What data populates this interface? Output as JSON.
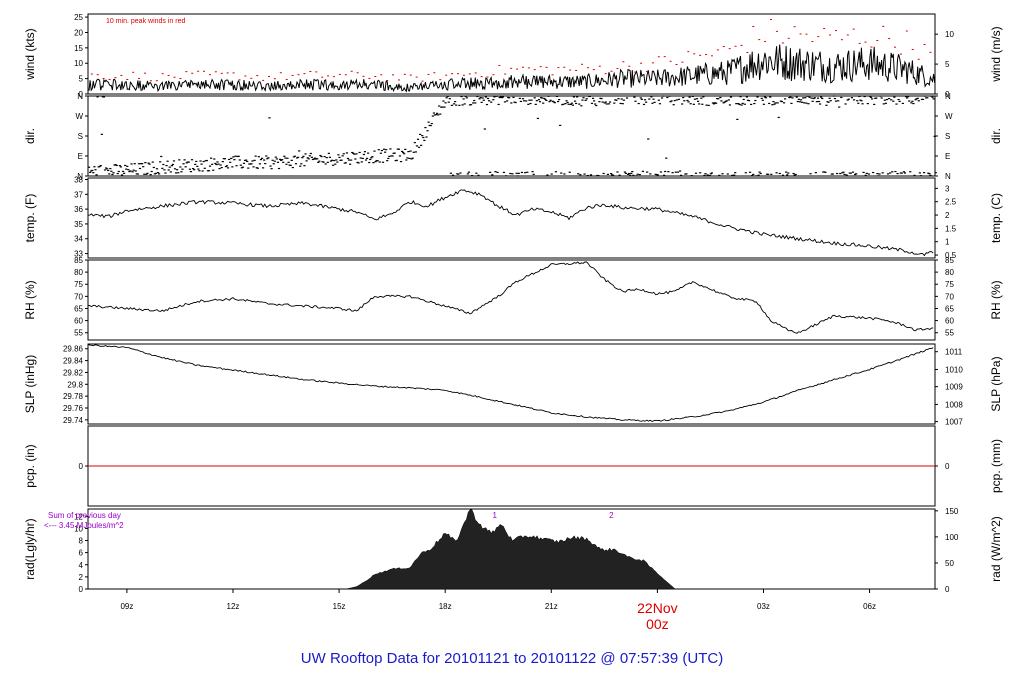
{
  "footer": {
    "title": "UW Rooftop Data for 20101121  to  20101122 @ 07:57:39  (UTC)"
  },
  "colors": {
    "peak_winds": "#dd0000",
    "annotation": "#9900cc",
    "footer": "#1a1acc",
    "trace": "#000000",
    "zero_line": "#dd0000",
    "date_label": "#dd0000"
  },
  "chart_data": {
    "type": "line",
    "x_axis": {
      "unit": "UTC hours since 20101121 00z",
      "range": [
        7.9,
        31.85
      ],
      "ticks": [
        {
          "value": 9,
          "label": "09z"
        },
        {
          "value": 12,
          "label": "12z"
        },
        {
          "value": 15,
          "label": "15z"
        },
        {
          "value": 18,
          "label": "18z"
        },
        {
          "value": 21,
          "label": "21z"
        },
        {
          "value": 24,
          "label": "22Nov\n00z"
        },
        {
          "value": 27,
          "label": "03z"
        },
        {
          "value": 30,
          "label": "06z"
        }
      ]
    },
    "panels": [
      {
        "id": "wind",
        "ylabel": "wind (kts)",
        "ylabel_right": "wind (m/s)",
        "ylim": [
          0,
          26
        ],
        "yticks": [
          0,
          5,
          10,
          15,
          20,
          25
        ],
        "yticks_right": [
          {
            "value": 0,
            "label": "0"
          },
          {
            "value": 9.72,
            "label": "5"
          },
          {
            "value": 19.44,
            "label": "10"
          }
        ],
        "annotation": "10 min. peak winds in red",
        "series": [
          {
            "name": "wind",
            "x": [
              8,
              9,
              10,
              11,
              12,
              13,
              14,
              15,
              16,
              17,
              18,
              19,
              20,
              21,
              22,
              23,
              24,
              25,
              26,
              27,
              28,
              29,
              30,
              31,
              31.8
            ],
            "y": [
              3,
              3,
              2.5,
              3,
              3,
              2.5,
              3,
              3,
              3,
              2,
              3,
              3.5,
              4,
              4,
              4,
              5,
              5,
              6,
              7,
              11,
              10,
              9,
              10,
              8,
              5
            ]
          },
          {
            "name": "10 min. peak winds",
            "x": [
              8,
              9,
              10,
              11,
              12,
              13,
              14,
              15,
              16,
              17,
              18,
              19,
              20,
              21,
              22,
              23,
              24,
              25,
              26,
              27,
              28,
              29,
              30,
              31,
              31.8
            ],
            "y": [
              6,
              6,
              5.5,
              6,
              6,
              5.5,
              6,
              6,
              6,
              5,
              6,
              7,
              8,
              8,
              8,
              9,
              10,
              12,
              14,
              20,
              19,
              18,
              19,
              17,
              12
            ]
          }
        ]
      },
      {
        "id": "dir",
        "ylabel": "dir.",
        "ylabel_right": "dir.",
        "ylim": [
          0,
          360
        ],
        "ytick_labels": [
          {
            "value": 0,
            "label": "N"
          },
          {
            "value": 90,
            "label": "E"
          },
          {
            "value": 180,
            "label": "S"
          },
          {
            "value": 270,
            "label": "W"
          },
          {
            "value": 360,
            "label": "N"
          }
        ],
        "series": [
          {
            "name": "wind direction",
            "x": [
              8,
              9,
              10,
              11,
              12,
              13,
              14,
              15,
              16,
              17,
              18,
              19,
              20,
              21,
              22,
              23,
              24,
              25,
              26,
              27,
              28,
              29,
              30,
              31,
              31.8
            ],
            "y": [
              20,
              25,
              40,
              50,
              60,
              60,
              70,
              80,
              90,
              95,
              345,
              350,
              352,
              350,
              345,
              350,
              352,
              348,
              345,
              350,
              352,
              348,
              350,
              352,
              350
            ]
          }
        ]
      },
      {
        "id": "temp",
        "ylabel": "temp. (F)",
        "ylabel_right": "temp. (C)",
        "ylim": [
          32.7,
          38.1
        ],
        "yticks": [
          33,
          34,
          35,
          36,
          37,
          38
        ],
        "yticks_right": [
          {
            "value": 32.9,
            "label": "0.5"
          },
          {
            "value": 33.8,
            "label": "1"
          },
          {
            "value": 34.7,
            "label": "1.5"
          },
          {
            "value": 35.6,
            "label": "2"
          },
          {
            "value": 36.5,
            "label": "2.5"
          },
          {
            "value": 37.4,
            "label": "3"
          }
        ],
        "series": [
          {
            "name": "temperature",
            "x": [
              8,
              8.5,
              9,
              10,
              11,
              12,
              13,
              14,
              15,
              15.5,
              16,
              16.5,
              17,
              17.5,
              18,
              18.5,
              19,
              19.5,
              20,
              20.5,
              21,
              21.5,
              22,
              22.5,
              23,
              24,
              25,
              26,
              27,
              28,
              29,
              30,
              31,
              31.5,
              31.8
            ],
            "y": [
              35.6,
              35.5,
              35.9,
              36.2,
              36.5,
              36.4,
              36.2,
              36.4,
              36.0,
              35.8,
              35.3,
              35.7,
              36.5,
              36.2,
              36.8,
              37.3,
              37.0,
              36.2,
              35.6,
              36.0,
              35.8,
              35.4,
              36.1,
              36.3,
              36.1,
              36.0,
              35.5,
              34.8,
              34.3,
              34.0,
              33.7,
              33.5,
              33.2,
              32.9,
              33.1
            ]
          }
        ]
      },
      {
        "id": "rh",
        "ylabel": "RH (%)",
        "ylabel_right": "RH (%)",
        "ylim": [
          52,
          85
        ],
        "yticks": [
          55,
          60,
          65,
          70,
          75,
          80,
          85
        ],
        "yticks_right": [
          {
            "value": 55,
            "label": "55"
          },
          {
            "value": 60,
            "label": "60"
          },
          {
            "value": 65,
            "label": "65"
          },
          {
            "value": 70,
            "label": "70"
          },
          {
            "value": 75,
            "label": "75"
          },
          {
            "value": 80,
            "label": "80"
          },
          {
            "value": 85,
            "label": "85"
          }
        ],
        "series": [
          {
            "name": "relative humidity",
            "x": [
              8,
              9,
              10,
              11,
              12,
              13,
              14,
              15,
              15.5,
              16,
              17,
              18,
              18.7,
              19.5,
              20,
              21,
              22,
              22.5,
              23,
              23.5,
              24,
              24.5,
              25,
              26,
              26.3,
              26.8,
              27.2,
              27.7,
              28,
              29,
              30,
              30.5,
              31,
              31.3,
              31.8
            ],
            "y": [
              66,
              65,
              64,
              68,
              69,
              67,
              66,
              65,
              64,
              70,
              70,
              66,
              63,
              70,
              76,
              83,
              84,
              77,
              72,
              73,
              71,
              72,
              76,
              70,
              69,
              68,
              60,
              56,
              55,
              62,
              61,
              60,
              58,
              56,
              57
            ]
          }
        ]
      },
      {
        "id": "slp",
        "ylabel": "SLP (inHg)",
        "ylabel_right": "SLP (hPa)",
        "ylim": [
          29.733,
          29.868
        ],
        "yticks": [
          29.74,
          29.76,
          29.78,
          29.8,
          29.82,
          29.84,
          29.86
        ],
        "yticks_right": [
          {
            "value": 29.737,
            "label": "1007"
          },
          {
            "value": 29.766,
            "label": "1008"
          },
          {
            "value": 29.796,
            "label": "1009"
          },
          {
            "value": 29.825,
            "label": "1010"
          },
          {
            "value": 29.855,
            "label": "1011"
          }
        ],
        "series": [
          {
            "name": "sea level pressure",
            "x": [
              8,
              9,
              10,
              11,
              12,
              13,
              14,
              15,
              16,
              17,
              18,
              19,
              20,
              21,
              22,
              23,
              24,
              25,
              26,
              27,
              28,
              29,
              30,
              31,
              31.8
            ],
            "y": [
              29.866,
              29.862,
              29.845,
              29.832,
              29.824,
              29.816,
              29.808,
              29.802,
              29.797,
              29.794,
              29.79,
              29.778,
              29.765,
              29.752,
              29.745,
              29.74,
              29.738,
              29.745,
              29.755,
              29.77,
              29.79,
              29.808,
              29.825,
              29.845,
              29.862
            ]
          }
        ]
      },
      {
        "id": "pcp",
        "ylabel": "pcp. (in)",
        "ylabel_right": "pcp. (mm)",
        "ylim": [
          -1,
          1
        ],
        "yticks": [
          0
        ],
        "yticks_right": [
          {
            "value": 0,
            "label": "0"
          }
        ],
        "series": [
          {
            "name": "precipitation",
            "x": [
              7.9,
              31.85
            ],
            "y": [
              0,
              0
            ]
          }
        ]
      },
      {
        "id": "rad",
        "ylabel": "rad(Lgly/hr)",
        "ylabel_right": "rad (W/m^2)",
        "ylim": [
          0,
          13.2
        ],
        "yticks": [
          0,
          2,
          4,
          6,
          8,
          10,
          12
        ],
        "yticks_right": [
          {
            "value": 0,
            "label": "0"
          },
          {
            "value": 4.3,
            "label": "50"
          },
          {
            "value": 8.6,
            "label": "100"
          },
          {
            "value": 12.9,
            "label": "150"
          }
        ],
        "annotation_lines": [
          "Sum of previous day",
          "<--- 3.45 MJoules/m^2"
        ],
        "markers": [
          {
            "value": 19.4,
            "label": "1"
          },
          {
            "value": 22.7,
            "label": "2"
          }
        ],
        "series": [
          {
            "name": "solar radiation",
            "x": [
              15.2,
              15.5,
              15.8,
              16,
              16.5,
              17,
              17.3,
              17.6,
              18,
              18.3,
              18.5,
              18.7,
              19,
              19.3,
              19.6,
              19.9,
              20.2,
              20.5,
              20.8,
              21.2,
              21.6,
              22,
              22.4,
              22.8,
              23.2,
              23.6,
              24,
              24.5
            ],
            "y": [
              0,
              0.4,
              1.5,
              2.4,
              3.3,
              3.5,
              5.8,
              6.7,
              9.2,
              7.8,
              10.3,
              13.2,
              10.5,
              9.2,
              10.7,
              7.9,
              8.7,
              8.7,
              8.2,
              7.8,
              8.5,
              8.3,
              6.5,
              6.5,
              5.2,
              4.7,
              2.6,
              0
            ]
          }
        ]
      }
    ]
  }
}
